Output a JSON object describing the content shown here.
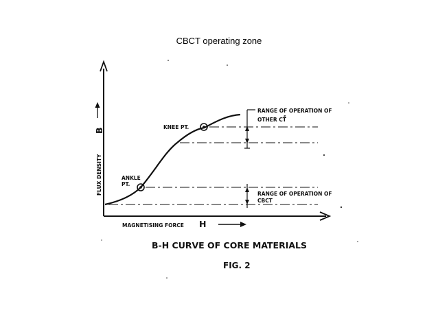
{
  "slide": {
    "title": "CBCT operating zone"
  },
  "diagram": {
    "y_axis_label": "FLUX DENSITY",
    "y_axis_symbol": "B",
    "x_axis_label": "MAGNETISING FORCE",
    "x_axis_symbol": "H",
    "knee_label": "KNEE PT.",
    "ankle_label_line1": "ANKLE",
    "ankle_label_line2": "PT.",
    "range_other_line1": "RANGE OF OPERATION OF",
    "range_other_line2": "OTHER CT",
    "range_other_superscript": "S",
    "range_cbct_line1": "RANGE OF OPERATION OF",
    "range_cbct_line2": "CBCT",
    "caption": "B-H CURVE OF CORE MATERIALS",
    "figure_number": "FIG. 2"
  }
}
